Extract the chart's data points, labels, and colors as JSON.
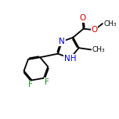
{
  "bg_color": "#ffffff",
  "bond_color": "#000000",
  "bond_lw": 1.3,
  "atom_colors": {
    "N": "#0000cc",
    "O": "#cc0000",
    "F": "#228B22",
    "C": "#000000"
  },
  "font_size": 7.5,
  "figsize": [
    1.52,
    1.52
  ],
  "dpi": 100,
  "xlim": [
    0,
    10
  ],
  "ylim": [
    0,
    10
  ]
}
